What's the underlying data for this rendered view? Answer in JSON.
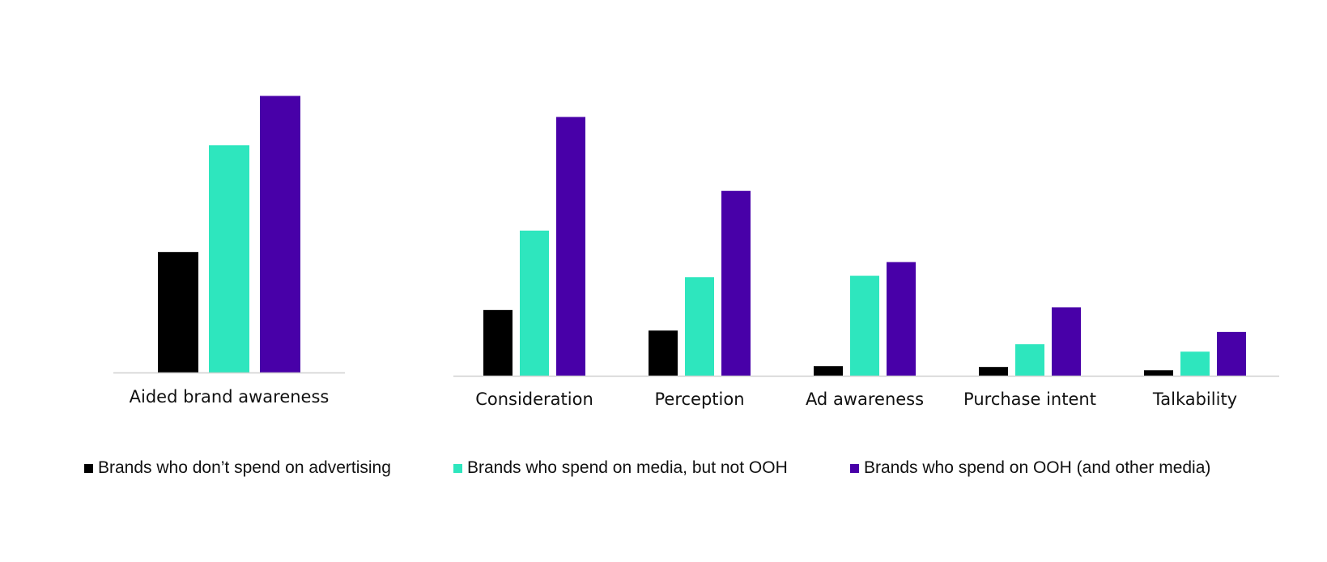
{
  "chart_data": [
    {
      "type": "bar",
      "categories": [
        "Aided brand awareness"
      ],
      "series": [
        {
          "name": "Brands who don’t spend on advertising",
          "color": "#000000",
          "values": [
            44
          ]
        },
        {
          "name": "Brands who spend on media, but not OOH",
          "color": "#2EE6BE",
          "values": [
            83
          ]
        },
        {
          "name": "Brands who spend on OOH (and other media)",
          "color": "#4800A8",
          "values": [
            101
          ]
        }
      ],
      "ylim": [
        0,
        110
      ]
    },
    {
      "type": "bar",
      "categories": [
        "Consideration",
        "Perception",
        "Ad awareness",
        "Purchase intent",
        "Talkability"
      ],
      "series": [
        {
          "name": "Brands who don’t spend on advertising",
          "color": "#000000",
          "values": [
            24,
            16.5,
            3.5,
            3.2,
            2
          ]
        },
        {
          "name": "Brands who spend on media, but not OOH",
          "color": "#2EE6BE",
          "values": [
            53,
            36,
            36.5,
            11.5,
            8.8
          ]
        },
        {
          "name": "Brands who spend on OOH (and other media)",
          "color": "#4800A8",
          "values": [
            94.5,
            67.5,
            41.5,
            25,
            16
          ]
        }
      ],
      "ylim": [
        0,
        110
      ]
    }
  ],
  "legend": [
    {
      "label": "Brands who don’t spend on advertising",
      "color": "#000000"
    },
    {
      "label": "Brands who spend on media, but not OOH",
      "color": "#2EE6BE"
    },
    {
      "label": "Brands who spend on OOH (and other media)",
      "color": "#4800A8"
    }
  ]
}
